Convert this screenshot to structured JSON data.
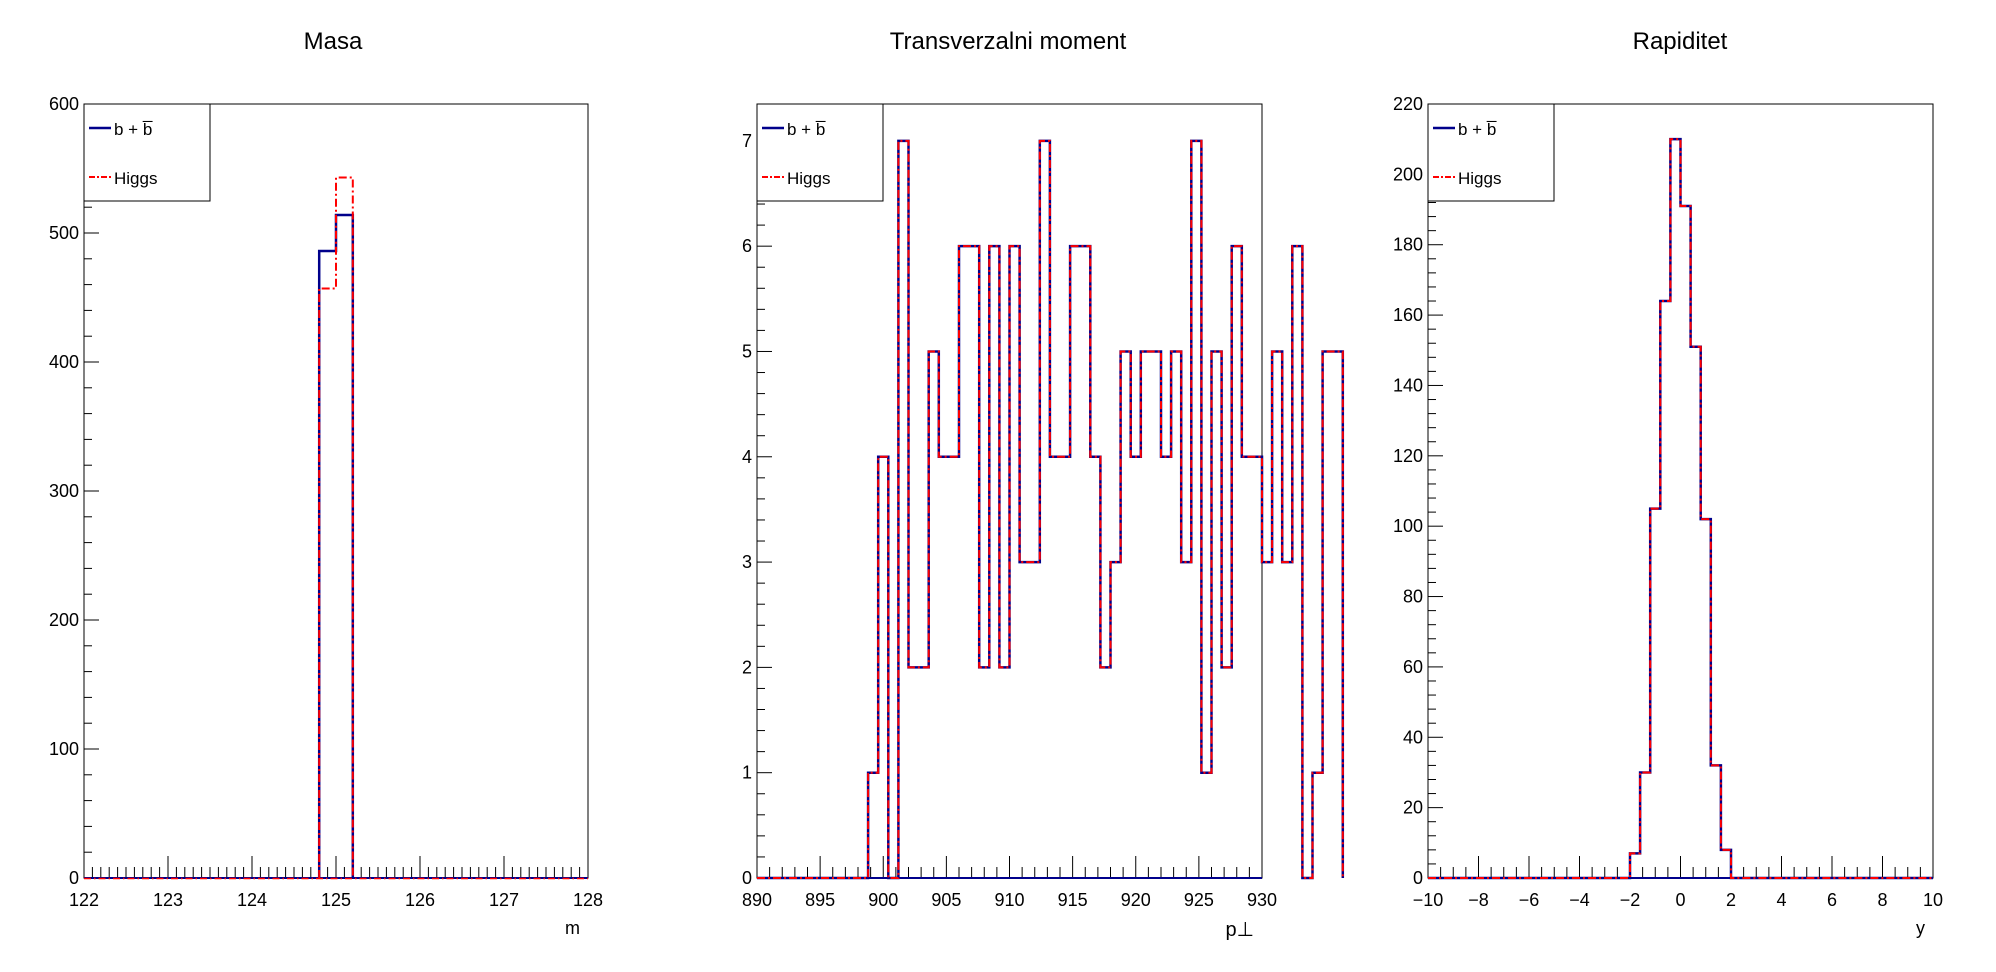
{
  "colors": {
    "bbar": "#00008b",
    "higgs": "#ff0000",
    "axis": "#000000"
  },
  "chart_data": [
    {
      "type": "histogram",
      "title": "Masa",
      "xlabel": "m",
      "ylabel": "",
      "xlim": [
        122,
        128
      ],
      "ylim": [
        0,
        600
      ],
      "xticks": [
        "122",
        "123",
        "124",
        "125",
        "126",
        "127",
        "128"
      ],
      "yticks": [
        "0",
        "100",
        "200",
        "300",
        "400",
        "500",
        "600"
      ],
      "legend": {
        "position": "top-left",
        "entries": [
          "b + b̅",
          "Higgs"
        ]
      },
      "series": [
        {
          "name": "b + b̅",
          "style": "solid",
          "bins": [
            [
              124.8,
              125.0,
              486
            ],
            [
              125.0,
              125.2,
              514
            ]
          ]
        },
        {
          "name": "Higgs",
          "style": "dashdot",
          "bins": [
            [
              124.8,
              125.0,
              457
            ],
            [
              125.0,
              125.2,
              543
            ]
          ]
        }
      ]
    },
    {
      "type": "histogram",
      "title": "Transverzalni moment",
      "xlabel": "p⊥",
      "ylabel": "",
      "xlim": [
        890,
        930
      ],
      "ylim": [
        0,
        7.35
      ],
      "xticks": [
        "890",
        "895",
        "900",
        "905",
        "910",
        "915",
        "920",
        "925",
        "930"
      ],
      "yticks": [
        "0",
        "1",
        "2",
        "3",
        "4",
        "5",
        "6",
        "7"
      ],
      "legend": {
        "position": "top-left",
        "entries": [
          "b + b̅",
          "Higgs"
        ]
      },
      "bin_start": 890,
      "bin_width": 0.8,
      "values": [
        0,
        0,
        0,
        0,
        0,
        0,
        0,
        0,
        0,
        0,
        0,
        1,
        4,
        0,
        7,
        2,
        2,
        5,
        4,
        4,
        6,
        6,
        2,
        6,
        2,
        6,
        3,
        3,
        7,
        4,
        4,
        6,
        6,
        4,
        2,
        3,
        5,
        4,
        5,
        5,
        4,
        5,
        3,
        7,
        1,
        5,
        2,
        6,
        4,
        4,
        3,
        5,
        3,
        6,
        0,
        1,
        5,
        5
      ],
      "series": [
        {
          "name": "b + b̅",
          "style": "solid"
        },
        {
          "name": "Higgs",
          "style": "dashdot"
        }
      ]
    },
    {
      "type": "histogram",
      "title": "Rapiditet",
      "xlabel": "y",
      "ylabel": "",
      "xlim": [
        -10,
        10
      ],
      "ylim": [
        0,
        220
      ],
      "xticks": [
        "−10",
        "−8",
        "−6",
        "−4",
        "−2",
        "0",
        "2",
        "4",
        "6",
        "8",
        "10"
      ],
      "yticks": [
        "0",
        "20",
        "40",
        "60",
        "80",
        "100",
        "120",
        "140",
        "160",
        "180",
        "200",
        "220"
      ],
      "legend": {
        "position": "top-left",
        "entries": [
          "b + b̅",
          "Higgs"
        ]
      },
      "bin_start": -10,
      "bin_width": 0.4,
      "values": [
        0,
        0,
        0,
        0,
        0,
        0,
        0,
        0,
        0,
        0,
        0,
        0,
        0,
        0,
        0,
        0,
        0,
        0,
        0,
        0,
        7,
        30,
        105,
        164,
        210,
        191,
        151,
        102,
        32,
        8,
        0,
        0,
        0,
        0,
        0,
        0,
        0,
        0,
        0,
        0,
        0,
        0,
        0,
        0,
        0,
        0,
        0,
        0,
        0,
        0
      ],
      "series": [
        {
          "name": "b + b̅",
          "style": "solid"
        },
        {
          "name": "Higgs",
          "style": "dashdot"
        }
      ]
    }
  ]
}
